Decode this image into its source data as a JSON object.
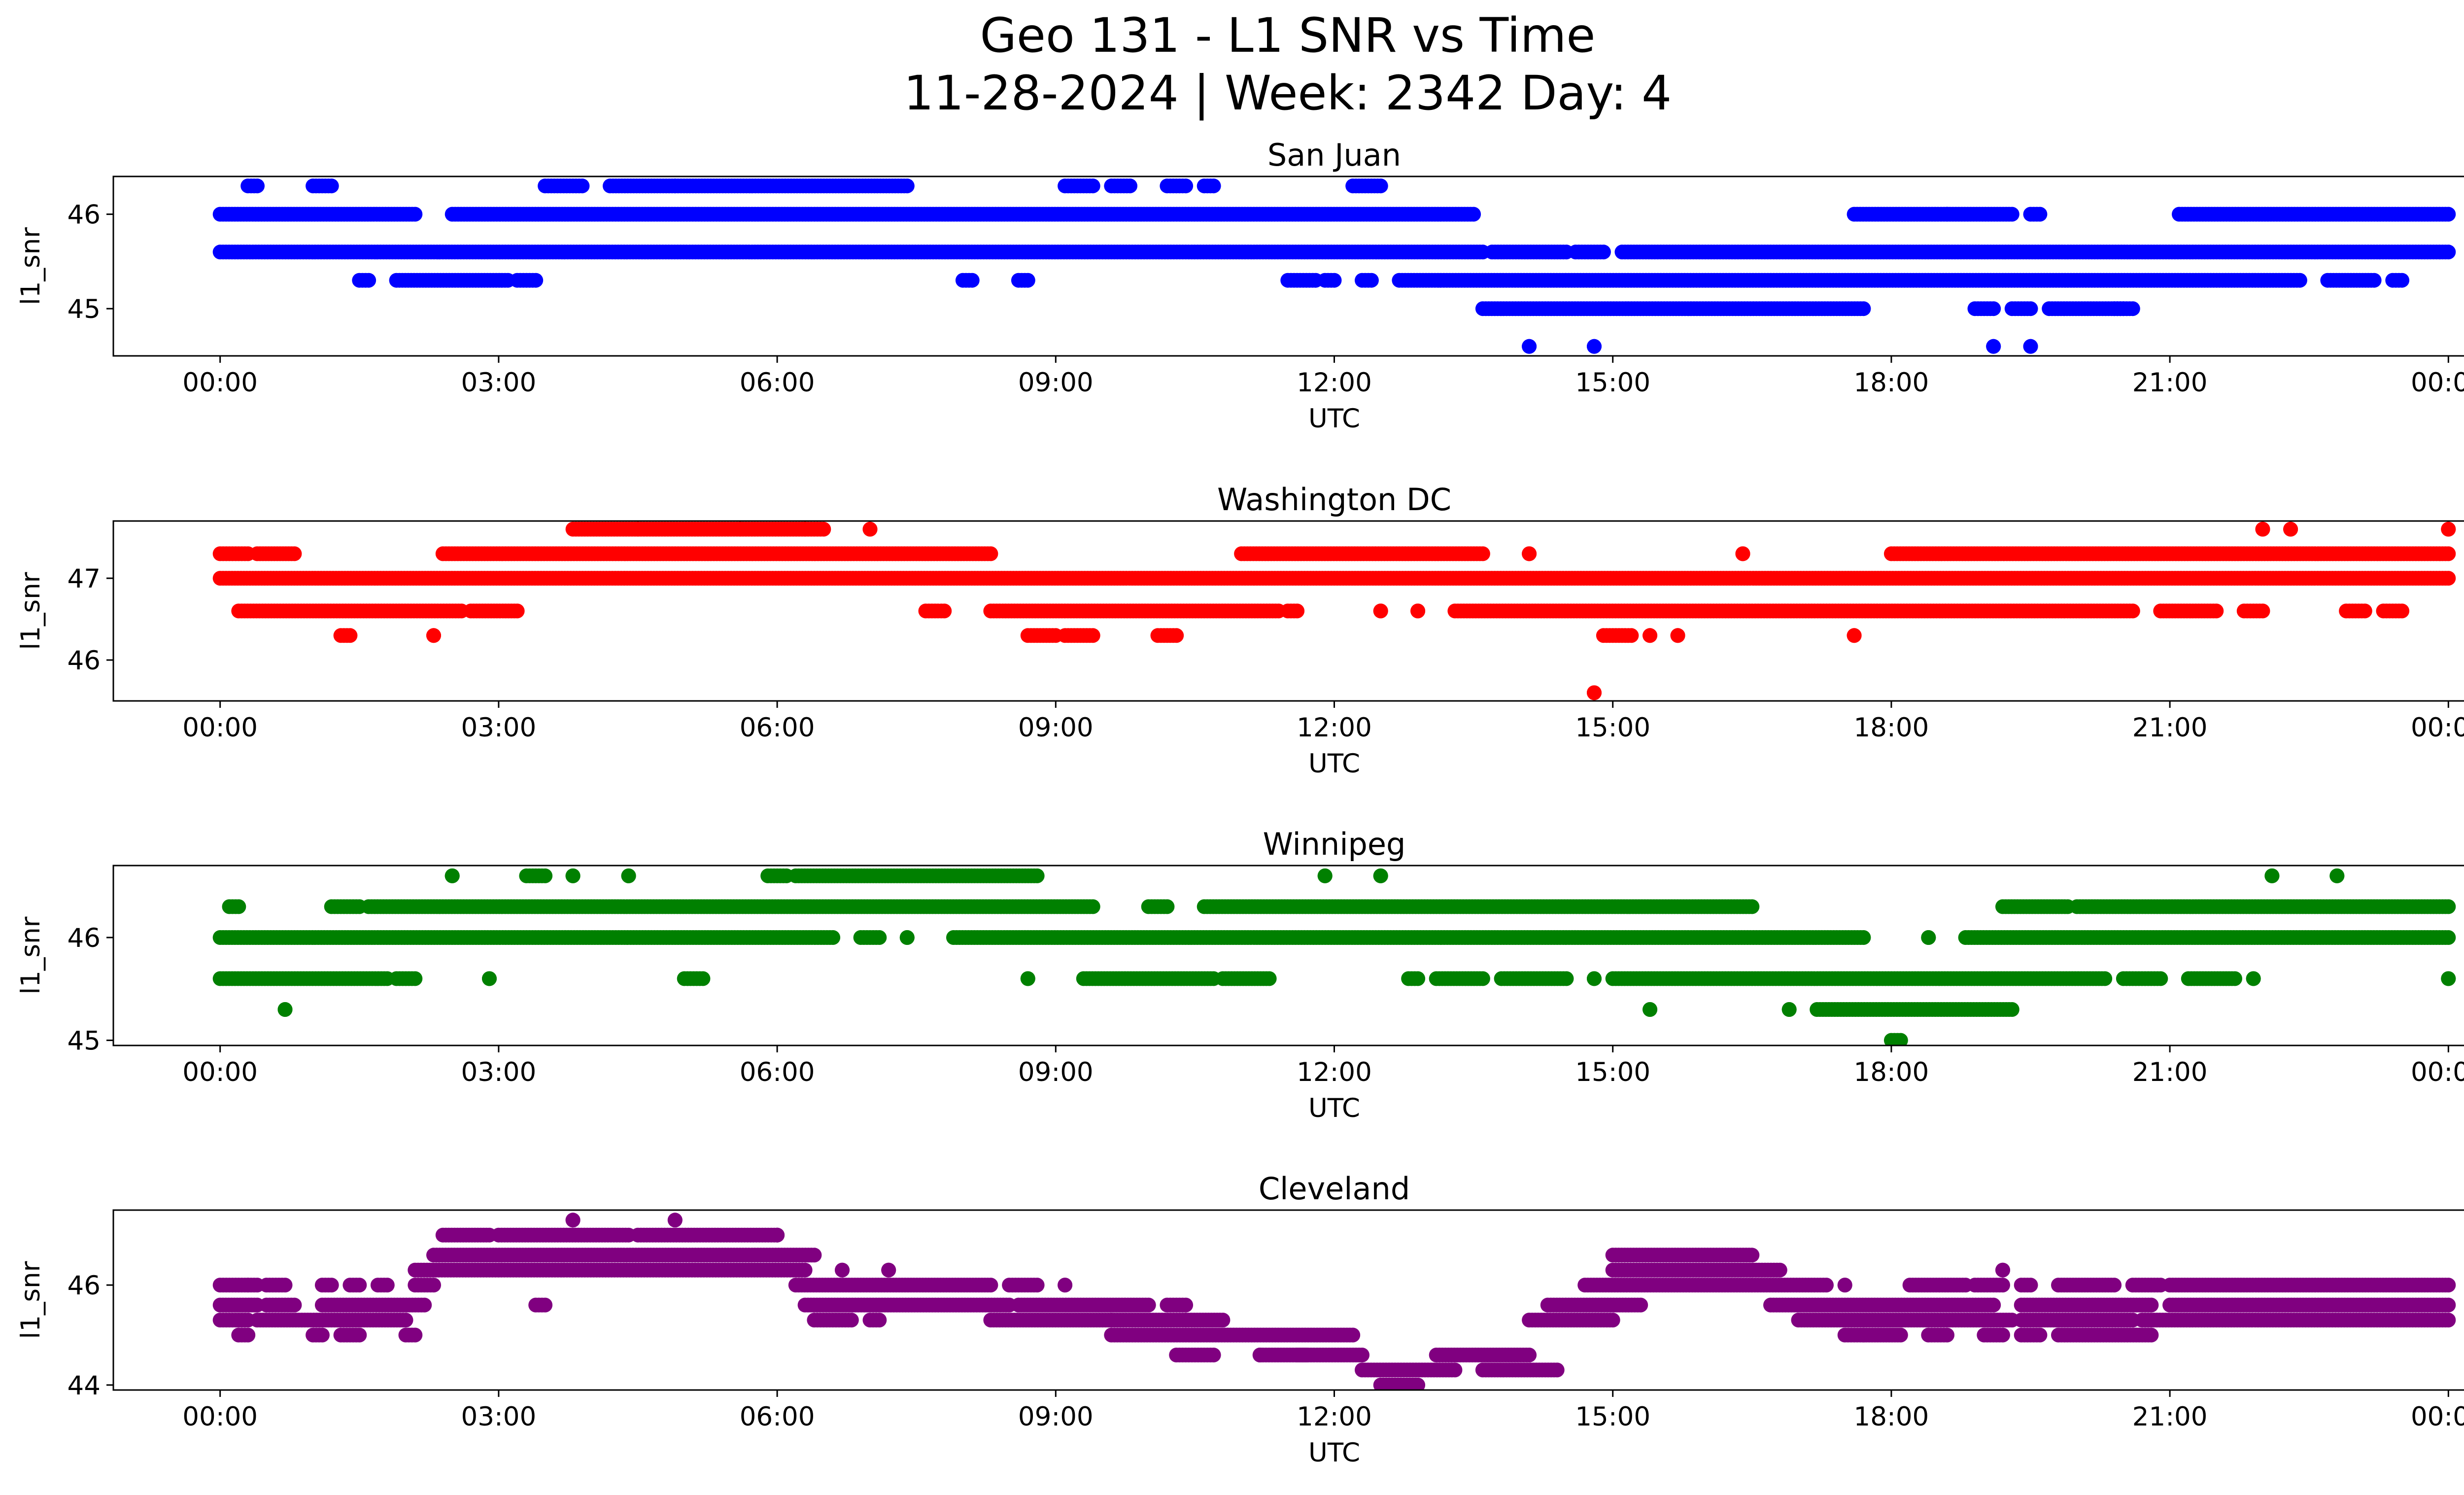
{
  "chart_data": {
    "type": "scatter",
    "title_line1": "Geo 131 - L1 SNR vs Time",
    "title_line2": "11-28-2024 | Week: 2342 Day: 4",
    "xlabel": "UTC",
    "ylabel": "l1_snr",
    "xticks": [
      "00:00",
      "03:00",
      "06:00",
      "09:00",
      "12:00",
      "15:00",
      "18:00",
      "21:00",
      "00:00"
    ],
    "xlim_hours": [
      -1.15,
      25.15
    ],
    "panels": [
      {
        "name": "San Juan",
        "color": "#0000ff",
        "ylim": [
          44.5,
          46.4
        ],
        "yticks": [
          45,
          46
        ],
        "levels": [
          {
            "y": 46.3,
            "segments": [
              [
                0.3,
                0.4
              ],
              [
                1.0,
                1.2
              ],
              [
                3.5,
                3.9
              ],
              [
                4.2,
                4.9
              ],
              [
                4.9,
                7.4
              ],
              [
                9.1,
                9.4
              ],
              [
                9.6,
                9.8
              ],
              [
                10.2,
                10.4
              ],
              [
                10.6,
                10.7
              ],
              [
                12.2,
                12.5
              ]
            ]
          },
          {
            "y": 46.0,
            "segments": [
              [
                0.0,
                2.1
              ],
              [
                2.5,
                13.5
              ],
              [
                17.6,
                18.6
              ],
              [
                18.6,
                19.3
              ],
              [
                19.5,
                19.6
              ],
              [
                21.1,
                24.0
              ]
            ]
          },
          {
            "y": 45.6,
            "segments": [
              [
                0.0,
                13.6
              ],
              [
                13.7,
                14.5
              ],
              [
                14.6,
                14.9
              ],
              [
                15.1,
                24.0
              ]
            ]
          },
          {
            "y": 45.3,
            "segments": [
              [
                1.5,
                1.6
              ],
              [
                1.9,
                3.1
              ],
              [
                3.2,
                3.4
              ],
              [
                8.0,
                8.1
              ],
              [
                8.6,
                8.7
              ],
              [
                11.5,
                11.8
              ],
              [
                11.9,
                12.0
              ],
              [
                12.3,
                12.4
              ],
              [
                12.7,
                22.4
              ],
              [
                22.7,
                23.2
              ],
              [
                23.4,
                23.5
              ]
            ]
          },
          {
            "y": 45.0,
            "segments": [
              [
                13.6,
                17.7
              ],
              [
                18.9,
                19.1
              ],
              [
                19.3,
                19.5
              ],
              [
                19.7,
                20.5
              ],
              [
                20.4,
                20.6
              ]
            ]
          },
          {
            "y": 44.6,
            "segments": [
              [
                14.1,
                14.1
              ],
              [
                14.8,
                14.8
              ],
              [
                19.1,
                19.1
              ],
              [
                19.5,
                19.5
              ]
            ]
          }
        ]
      },
      {
        "name": "Washington DC",
        "color": "#ff0000",
        "ylim": [
          45.5,
          47.7
        ],
        "yticks": [
          46,
          47
        ],
        "levels": [
          {
            "y": 47.6,
            "segments": [
              [
                3.8,
                4.5
              ],
              [
                4.5,
                5.6
              ],
              [
                5.6,
                6.3
              ],
              [
                6.3,
                6.5
              ],
              [
                7.0,
                7.0
              ],
              [
                22.0,
                22.0
              ],
              [
                22.3,
                22.3
              ],
              [
                24.0,
                24.0
              ]
            ]
          },
          {
            "y": 47.3,
            "segments": [
              [
                0.0,
                0.3
              ],
              [
                0.4,
                0.8
              ],
              [
                2.4,
                8.3
              ],
              [
                11.0,
                13.6
              ],
              [
                14.1,
                14.1
              ],
              [
                16.4,
                16.4
              ],
              [
                18.0,
                24.0
              ]
            ]
          },
          {
            "y": 47.0,
            "segments": [
              [
                0.0,
                24.0
              ]
            ]
          },
          {
            "y": 46.6,
            "segments": [
              [
                0.2,
                2.6
              ],
              [
                2.7,
                3.2
              ],
              [
                7.6,
                7.8
              ],
              [
                8.3,
                11.4
              ],
              [
                11.5,
                11.6
              ],
              [
                12.5,
                12.5
              ],
              [
                12.9,
                12.9
              ],
              [
                13.3,
                20.6
              ],
              [
                20.9,
                21.5
              ],
              [
                21.8,
                22.0
              ],
              [
                22.9,
                23.1
              ],
              [
                23.3,
                23.5
              ]
            ]
          },
          {
            "y": 46.3,
            "segments": [
              [
                1.3,
                1.4
              ],
              [
                2.3,
                2.3
              ],
              [
                8.7,
                9.0
              ],
              [
                9.1,
                9.4
              ],
              [
                10.1,
                10.3
              ],
              [
                14.9,
                15.2
              ],
              [
                15.4,
                15.4
              ],
              [
                15.7,
                15.7
              ],
              [
                17.6,
                17.6
              ]
            ]
          },
          {
            "y": 45.6,
            "segments": [
              [
                14.8,
                14.8
              ]
            ]
          }
        ]
      },
      {
        "name": "Winnipeg",
        "color": "#008000",
        "ylim": [
          44.95,
          46.7
        ],
        "yticks": [
          45,
          46
        ],
        "levels": [
          {
            "y": 46.6,
            "segments": [
              [
                2.5,
                2.5
              ],
              [
                3.3,
                3.5
              ],
              [
                3.8,
                3.8
              ],
              [
                4.4,
                4.4
              ],
              [
                5.9,
                6.1
              ],
              [
                6.2,
                8.8
              ],
              [
                11.9,
                11.9
              ],
              [
                12.5,
                12.5
              ],
              [
                22.1,
                22.1
              ],
              [
                22.8,
                22.8
              ]
            ]
          },
          {
            "y": 46.3,
            "segments": [
              [
                0.1,
                0.2
              ],
              [
                1.2,
                1.5
              ],
              [
                1.6,
                9.4
              ],
              [
                10.0,
                10.2
              ],
              [
                10.6,
                16.5
              ],
              [
                19.2,
                19.9
              ],
              [
                20.0,
                24.0
              ]
            ]
          },
          {
            "y": 46.0,
            "segments": [
              [
                0.0,
                6.6
              ],
              [
                6.9,
                7.1
              ],
              [
                7.4,
                7.4
              ],
              [
                7.9,
                17.7
              ],
              [
                18.4,
                18.4
              ],
              [
                18.8,
                24.0
              ]
            ]
          },
          {
            "y": 45.6,
            "segments": [
              [
                0.0,
                1.8
              ],
              [
                1.9,
                2.1
              ],
              [
                2.9,
                2.9
              ],
              [
                5.0,
                5.2
              ],
              [
                8.7,
                8.7
              ],
              [
                9.3,
                10.7
              ],
              [
                10.8,
                11.3
              ],
              [
                12.8,
                12.9
              ],
              [
                13.1,
                13.6
              ],
              [
                13.8,
                14.5
              ],
              [
                14.8,
                14.8
              ],
              [
                15.0,
                20.3
              ],
              [
                20.5,
                20.9
              ],
              [
                21.2,
                21.7
              ],
              [
                21.9,
                21.9
              ],
              [
                24.0,
                24.0
              ]
            ]
          },
          {
            "y": 45.3,
            "segments": [
              [
                0.7,
                0.7
              ],
              [
                15.4,
                15.4
              ],
              [
                16.9,
                16.9
              ],
              [
                17.2,
                19.3
              ]
            ]
          },
          {
            "y": 45.0,
            "segments": [
              [
                18.0,
                18.1
              ]
            ]
          }
        ]
      },
      {
        "name": "Cleveland",
        "color": "#800080",
        "ylim": [
          43.9,
          47.5
        ],
        "yticks": [
          44,
          46
        ],
        "levels": [
          {
            "y": 47.3,
            "segments": [
              [
                3.8,
                3.8
              ],
              [
                4.9,
                4.9
              ]
            ]
          },
          {
            "y": 47.0,
            "segments": [
              [
                2.4,
                2.9
              ],
              [
                3.0,
                4.4
              ],
              [
                4.5,
                6.0
              ],
              [
                6.0,
                6.0
              ]
            ]
          },
          {
            "y": 46.6,
            "segments": [
              [
                2.3,
                6.4
              ],
              [
                15.0,
                16.5
              ]
            ]
          },
          {
            "y": 46.3,
            "segments": [
              [
                2.1,
                6.3
              ],
              [
                6.7,
                6.7
              ],
              [
                7.2,
                7.2
              ],
              [
                15.0,
                16.8
              ],
              [
                19.2,
                19.2
              ]
            ]
          },
          {
            "y": 46.0,
            "segments": [
              [
                0.0,
                0.3
              ],
              [
                0.3,
                0.4
              ],
              [
                0.5,
                0.7
              ],
              [
                1.1,
                1.2
              ],
              [
                1.4,
                1.5
              ],
              [
                1.7,
                1.8
              ],
              [
                2.1,
                2.3
              ],
              [
                6.2,
                8.3
              ],
              [
                8.5,
                8.8
              ],
              [
                9.1,
                9.1
              ],
              [
                14.7,
                17.3
              ],
              [
                17.5,
                17.5
              ],
              [
                18.2,
                18.8
              ],
              [
                18.9,
                19.2
              ],
              [
                19.4,
                19.5
              ],
              [
                19.8,
                20.4
              ],
              [
                20.6,
                20.9
              ],
              [
                21.0,
                24.0
              ]
            ]
          },
          {
            "y": 45.6,
            "segments": [
              [
                0.0,
                0.4
              ],
              [
                0.5,
                0.8
              ],
              [
                1.1,
                2.2
              ],
              [
                3.4,
                3.5
              ],
              [
                6.3,
                8.5
              ],
              [
                8.6,
                10.0
              ],
              [
                10.2,
                10.4
              ],
              [
                14.3,
                15.3
              ],
              [
                16.7,
                19.1
              ],
              [
                19.4,
                20.8
              ],
              [
                21.0,
                24.0
              ]
            ]
          },
          {
            "y": 45.3,
            "segments": [
              [
                0.0,
                0.3
              ],
              [
                0.4,
                2.0
              ],
              [
                6.4,
                6.8
              ],
              [
                7.0,
                7.1
              ],
              [
                8.3,
                9.6
              ],
              [
                9.6,
                10.4
              ],
              [
                10.4,
                10.8
              ],
              [
                14.1,
                15.0
              ],
              [
                17.0,
                19.3
              ],
              [
                19.4,
                20.6
              ],
              [
                20.7,
                24.0
              ]
            ]
          },
          {
            "y": 45.0,
            "segments": [
              [
                0.2,
                0.3
              ],
              [
                1.0,
                1.1
              ],
              [
                1.3,
                1.5
              ],
              [
                2.0,
                2.1
              ],
              [
                9.6,
                12.2
              ],
              [
                17.5,
                17.7
              ],
              [
                17.7,
                18.1
              ],
              [
                18.4,
                18.6
              ],
              [
                19.0,
                19.2
              ],
              [
                19.4,
                19.6
              ],
              [
                19.8,
                20.8
              ]
            ]
          },
          {
            "y": 44.6,
            "segments": [
              [
                10.3,
                10.7
              ],
              [
                11.2,
                11.2
              ],
              [
                11.6,
                11.7
              ],
              [
                11.2,
                12.3
              ],
              [
                13.1,
                14.1
              ]
            ]
          },
          {
            "y": 44.3,
            "segments": [
              [
                12.3,
                13.3
              ],
              [
                13.6,
                14.4
              ]
            ]
          },
          {
            "y": 44.0,
            "segments": [
              [
                12.5,
                12.9
              ]
            ]
          }
        ]
      }
    ]
  }
}
